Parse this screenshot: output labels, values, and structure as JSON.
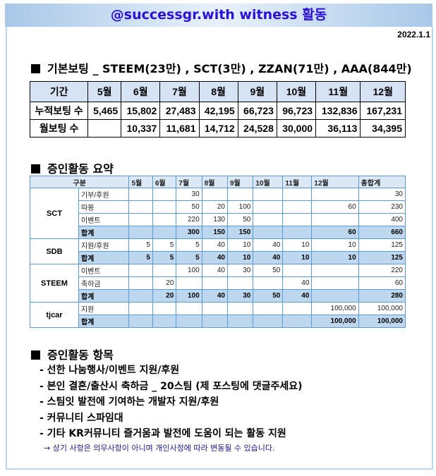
{
  "header": {
    "title": "@successgr.with witness 활동",
    "date": "2022.1.1"
  },
  "voting": {
    "heading": "기본보팅 _ STEEM(23만) , SCT(3만) , ZZAN(71만) , AAA(844만)",
    "columns": [
      "기간",
      "5월",
      "6월",
      "7월",
      "8월",
      "9월",
      "10월",
      "11월",
      "12월"
    ],
    "rows": [
      [
        "누적보팅 수",
        "5,465",
        "15,802",
        "27,483",
        "42,195",
        "66,723",
        "96,723",
        "132,836",
        "167,231"
      ],
      [
        "월보팅 수",
        "",
        "10,337",
        "11,681",
        "14,712",
        "24,528",
        "30,000",
        "36,113",
        "34,395"
      ]
    ]
  },
  "summary": {
    "heading": "증인활동 요약",
    "columns": [
      "구분",
      "5월",
      "6월",
      "7월",
      "8월",
      "9월",
      "10월",
      "11월",
      "12월",
      "총합계"
    ],
    "groups": [
      {
        "name": "SCT",
        "rows": [
          [
            "기부/후원",
            "",
            "",
            "30",
            "",
            "",
            "",
            "",
            "",
            "30"
          ],
          [
            "따봉",
            "",
            "",
            "50",
            "20",
            "100",
            "",
            "",
            "60",
            "230"
          ],
          [
            "이벤트",
            "",
            "",
            "220",
            "130",
            "50",
            "",
            "",
            "",
            "400"
          ],
          [
            "합계",
            "",
            "",
            "300",
            "150",
            "150",
            "",
            "",
            "60",
            "660"
          ]
        ]
      },
      {
        "name": "SDB",
        "rows": [
          [
            "지원/후원",
            "5",
            "5",
            "5",
            "40",
            "10",
            "40",
            "10",
            "10",
            "125"
          ],
          [
            "합계",
            "5",
            "5",
            "5",
            "40",
            "10",
            "40",
            "10",
            "10",
            "125"
          ]
        ]
      },
      {
        "name": "STEEM",
        "rows": [
          [
            "이벤트",
            "",
            "",
            "100",
            "40",
            "30",
            "50",
            "",
            "",
            "220"
          ],
          [
            "축하금",
            "",
            "20",
            "",
            "",
            "",
            "",
            "40",
            "",
            "60"
          ],
          [
            "합계",
            "",
            "20",
            "100",
            "40",
            "30",
            "50",
            "40",
            "",
            "280"
          ]
        ]
      },
      {
        "name": "tjcar",
        "rows": [
          [
            "지원",
            "",
            "",
            "",
            "",
            "",
            "",
            "",
            "100,000",
            "100,000"
          ],
          [
            "합계",
            "",
            "",
            "",
            "",
            "",
            "",
            "",
            "100,000",
            "100,000"
          ]
        ]
      }
    ]
  },
  "items": {
    "heading": "증인활동 항목",
    "list": [
      "- 선한 나눔행사/이벤트 지원/후원",
      "- 본인 결혼/출산시 축하금 _ 20스팀 (제 포스팅에 댓글주세요)",
      "- 스팀잇 발전에 기여하는 개발자 지원/후원",
      "- 커뮤니티 스파임대",
      "- 기타 KR커뮤니티 즐거움과 발전에 도움이 되는 활동 지원"
    ],
    "note": "→ 상기 사항은 의무사항이 아니며 개인사정에 따라 변동될 수 있습니다."
  }
}
